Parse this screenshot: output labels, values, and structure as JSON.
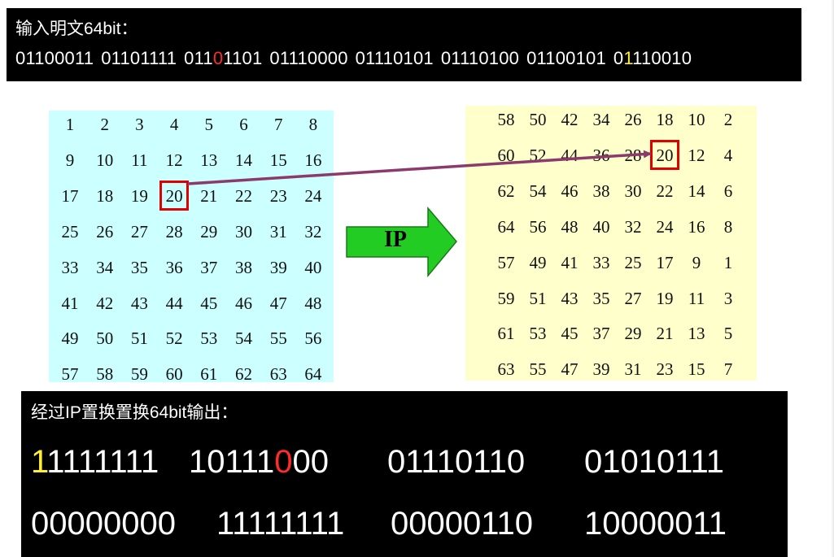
{
  "input": {
    "title": "输入明文64bit：",
    "bytes": [
      [
        {
          "t": "01100011"
        }
      ],
      [
        {
          "t": "01101111"
        }
      ],
      [
        {
          "t": "011"
        },
        {
          "t": "0",
          "c": "red"
        },
        {
          "t": "1101"
        }
      ],
      [
        {
          "t": "01110000"
        }
      ],
      [
        {
          "t": "01110101"
        }
      ],
      [
        {
          "t": "01110100"
        }
      ],
      [
        {
          "t": "01100101"
        }
      ],
      [
        {
          "t": "0"
        },
        {
          "t": "1",
          "c": "yellow"
        },
        {
          "t": "110010"
        }
      ]
    ]
  },
  "left_table": [
    [
      1,
      2,
      3,
      4,
      5,
      6,
      7,
      8
    ],
    [
      9,
      10,
      11,
      12,
      13,
      14,
      15,
      16
    ],
    [
      17,
      18,
      19,
      20,
      21,
      22,
      23,
      24
    ],
    [
      25,
      26,
      27,
      28,
      29,
      30,
      31,
      32
    ],
    [
      33,
      34,
      35,
      36,
      37,
      38,
      39,
      40
    ],
    [
      41,
      42,
      43,
      44,
      45,
      46,
      47,
      48
    ],
    [
      49,
      50,
      51,
      52,
      53,
      54,
      55,
      56
    ],
    [
      57,
      58,
      59,
      60,
      61,
      62,
      63,
      64
    ]
  ],
  "left_highlight": {
    "row": 2,
    "col": 3
  },
  "ip_table": [
    [
      58,
      50,
      42,
      34,
      26,
      18,
      10,
      2
    ],
    [
      60,
      52,
      44,
      36,
      28,
      20,
      12,
      4
    ],
    [
      62,
      54,
      46,
      38,
      30,
      22,
      14,
      6
    ],
    [
      64,
      56,
      48,
      40,
      32,
      24,
      16,
      8
    ],
    [
      57,
      49,
      41,
      33,
      25,
      17,
      9,
      1
    ],
    [
      59,
      51,
      43,
      35,
      27,
      19,
      11,
      3
    ],
    [
      61,
      53,
      45,
      37,
      29,
      21,
      13,
      5
    ],
    [
      63,
      55,
      47,
      39,
      31,
      23,
      15,
      7
    ]
  ],
  "right_highlight": {
    "row": 1,
    "col": 5
  },
  "ip_arrow": {
    "label": "IP",
    "color": "#22cc22"
  },
  "mapping_arrow_color": "#8b3a6b",
  "output": {
    "title": "经过IP置换置换64bit输出：",
    "bytes": [
      [
        {
          "t": "1",
          "c": "yellow"
        },
        {
          "t": "1111111"
        }
      ],
      [
        {
          "t": "10111"
        },
        {
          "t": "0",
          "c": "red"
        },
        {
          "t": "00"
        }
      ],
      [
        {
          "t": "01110110"
        }
      ],
      [
        {
          "t": "01010111"
        }
      ],
      [
        {
          "t": "00000000"
        }
      ],
      [
        {
          "t": "11111111"
        }
      ],
      [
        {
          "t": "00000110"
        }
      ],
      [
        {
          "t": "10000011"
        }
      ]
    ]
  }
}
